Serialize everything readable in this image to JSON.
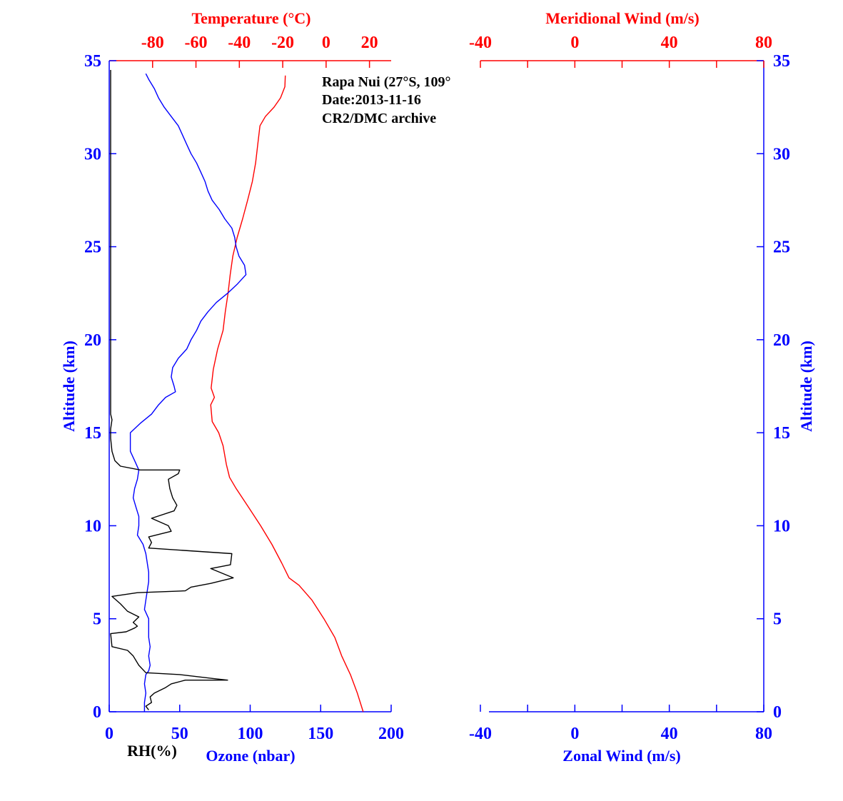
{
  "colors": {
    "ozone": "#0000ff",
    "temperature": "#ff0000",
    "rh": "#000000",
    "axes_blue": "#0000ff",
    "axes_red": "#ff0000"
  },
  "annotation": {
    "line1": "Rapa Nui (27°S, 109°",
    "line2": "Date:2013-11-16",
    "line3": "CR2/DMC archive"
  },
  "chart_data": [
    {
      "type": "line",
      "ylabel": "Altitude (km)",
      "ylim": [
        0,
        35
      ],
      "yticks": [
        "0",
        "5",
        "10",
        "15",
        "20",
        "25",
        "30",
        "35"
      ],
      "bottom_axis": {
        "label": "Ozone (nbar)",
        "lim": [
          0,
          200
        ],
        "ticks": [
          "0",
          "50",
          "100",
          "150",
          "200"
        ]
      },
      "rh_label": "RH(%)",
      "top_axis": {
        "label": "Temperature (°C)",
        "lim": [
          -100,
          30
        ],
        "ticks": [
          "-80",
          "-60",
          "-40",
          "-20",
          "0",
          "20"
        ]
      },
      "series": [
        {
          "name": "Temperature",
          "axis": "temperature",
          "points": [
            [
              17.1,
              0
            ],
            [
              14.4,
              1
            ],
            [
              11.2,
              2
            ],
            [
              10.0,
              2.3
            ],
            [
              7.2,
              3
            ],
            [
              4.0,
              4
            ],
            [
              -1.0,
              5
            ],
            [
              -6.5,
              6
            ],
            [
              -12.5,
              6.8
            ],
            [
              -17.1,
              7.2
            ],
            [
              -20.5,
              8
            ],
            [
              -25.0,
              9
            ],
            [
              -30.2,
              10
            ],
            [
              -35.8,
              11
            ],
            [
              -41.5,
              12
            ],
            [
              -44.5,
              12.6
            ],
            [
              -46.0,
              13.3
            ],
            [
              -47.5,
              14.3
            ],
            [
              -49.5,
              15.0
            ],
            [
              -52.5,
              15.6
            ],
            [
              -53.2,
              16.5
            ],
            [
              -51.5,
              16.9
            ],
            [
              -53.0,
              17.4
            ],
            [
              -52.0,
              18.4
            ],
            [
              -50.0,
              19.5
            ],
            [
              -47.5,
              20.5
            ],
            [
              -46.5,
              21.5
            ],
            [
              -45.2,
              22.5
            ],
            [
              -44.2,
              23.5
            ],
            [
              -43.0,
              24.5
            ],
            [
              -41.0,
              25.5
            ],
            [
              -38.5,
              26.5
            ],
            [
              -36.2,
              27.5
            ],
            [
              -34.0,
              28.5
            ],
            [
              -32.5,
              29.5
            ],
            [
              -31.5,
              30.5
            ],
            [
              -30.5,
              31.5
            ],
            [
              -28.0,
              32.0
            ],
            [
              -24.0,
              32.5
            ],
            [
              -21.0,
              33.0
            ],
            [
              -19.0,
              33.6
            ],
            [
              -18.8,
              34.2
            ]
          ]
        },
        {
          "name": "Ozone",
          "axis": "ozone",
          "points": [
            [
              25,
              0
            ],
            [
              25,
              0.5
            ],
            [
              26,
              1
            ],
            [
              25,
              1.5
            ],
            [
              26,
              2
            ],
            [
              28,
              2.2
            ],
            [
              29,
              2.5
            ],
            [
              28,
              3
            ],
            [
              29,
              3.5
            ],
            [
              28,
              4
            ],
            [
              28,
              4.5
            ],
            [
              28,
              5
            ],
            [
              25,
              5.5
            ],
            [
              26,
              6
            ],
            [
              27,
              6.5
            ],
            [
              28,
              7
            ],
            [
              28,
              7.5
            ],
            [
              27,
              8
            ],
            [
              26,
              8.5
            ],
            [
              24,
              9
            ],
            [
              20,
              9.5
            ],
            [
              21,
              10
            ],
            [
              21,
              10.5
            ],
            [
              19,
              11
            ],
            [
              17,
              11.5
            ],
            [
              18,
              12
            ],
            [
              20,
              12.5
            ],
            [
              21,
              13
            ],
            [
              18,
              13.5
            ],
            [
              15,
              14
            ],
            [
              15,
              14.5
            ],
            [
              15,
              15
            ],
            [
              22,
              15.5
            ],
            [
              30,
              16.0
            ],
            [
              35,
              16.5
            ],
            [
              40,
              16.9
            ],
            [
              47,
              17.2
            ],
            [
              46,
              17.5
            ],
            [
              44,
              18.0
            ],
            [
              45,
              18.5
            ],
            [
              49,
              19.0
            ],
            [
              55,
              19.5
            ],
            [
              58,
              20
            ],
            [
              62,
              20.5
            ],
            [
              65,
              21
            ],
            [
              70,
              21.5
            ],
            [
              76,
              22.0
            ],
            [
              84,
              22.5
            ],
            [
              91,
              23.0
            ],
            [
              97,
              23.5
            ],
            [
              96,
              24.0
            ],
            [
              92,
              24.5
            ],
            [
              90,
              25.0
            ],
            [
              89,
              25.5
            ],
            [
              87,
              26.0
            ],
            [
              82,
              26.5
            ],
            [
              78,
              27.0
            ],
            [
              73,
              27.5
            ],
            [
              70,
              28.0
            ],
            [
              68,
              28.5
            ],
            [
              65,
              29.0
            ],
            [
              62,
              29.5
            ],
            [
              58,
              30.0
            ],
            [
              55,
              30.5
            ],
            [
              52,
              31.0
            ],
            [
              49,
              31.5
            ],
            [
              44,
              32.0
            ],
            [
              39,
              32.5
            ],
            [
              35,
              33.0
            ],
            [
              32,
              33.5
            ],
            [
              28,
              34.0
            ],
            [
              26,
              34.3
            ]
          ]
        },
        {
          "name": "RH",
          "axis": "ozone",
          "points": [
            [
              28,
              0.1
            ],
            [
              26,
              0.3
            ],
            [
              30,
              0.5
            ],
            [
              29,
              0.8
            ],
            [
              32,
              1.0
            ],
            [
              40,
              1.3
            ],
            [
              44,
              1.5
            ],
            [
              54,
              1.7
            ],
            [
              84,
              1.7
            ],
            [
              72,
              1.8
            ],
            [
              50,
              2.0
            ],
            [
              26,
              2.1
            ],
            [
              21,
              2.5
            ],
            [
              17,
              3.0
            ],
            [
              13,
              3.3
            ],
            [
              2,
              3.5
            ],
            [
              1,
              4.2
            ],
            [
              12,
              4.3
            ],
            [
              18,
              4.5
            ],
            [
              20,
              4.6
            ],
            [
              17,
              4.8
            ],
            [
              21,
              5.1
            ],
            [
              13,
              5.4
            ],
            [
              8,
              5.8
            ],
            [
              2,
              6.2
            ],
            [
              20,
              6.4
            ],
            [
              54,
              6.5
            ],
            [
              58,
              6.7
            ],
            [
              72,
              6.9
            ],
            [
              88,
              7.2
            ],
            [
              72,
              7.7
            ],
            [
              86,
              7.9
            ],
            [
              87,
              8.5
            ],
            [
              28,
              8.8
            ],
            [
              30,
              9.1
            ],
            [
              28,
              9.4
            ],
            [
              44,
              9.7
            ],
            [
              42,
              10.0
            ],
            [
              30,
              10.4
            ],
            [
              46,
              10.8
            ],
            [
              48,
              11.1
            ],
            [
              45,
              11.5
            ],
            [
              43,
              12.0
            ],
            [
              42,
              12.5
            ],
            [
              49,
              12.8
            ],
            [
              50,
              13.0
            ],
            [
              40,
              13.0
            ],
            [
              22,
              13.0
            ],
            [
              8,
              13.2
            ],
            [
              4,
              13.5
            ],
            [
              2,
              14.0
            ],
            [
              1,
              14.7
            ],
            [
              1,
              15.2
            ],
            [
              2,
              15.7
            ],
            [
              1,
              16.0
            ],
            [
              1,
              34.5
            ]
          ]
        }
      ]
    },
    {
      "type": "line",
      "ylabel": "Altitude (km)",
      "ylim": [
        0,
        35
      ],
      "yticks": [
        "0",
        "5",
        "10",
        "15",
        "20",
        "25",
        "30",
        "35"
      ],
      "bottom_axis": {
        "label": "Zonal Wind (m/s)",
        "lim": [
          -40,
          80
        ],
        "ticks": [
          "-40",
          "0",
          "40",
          "80"
        ]
      },
      "top_axis": {
        "label": "Meridional Wind (m/s)",
        "lim": [
          -40,
          80
        ],
        "ticks": [
          "-40",
          "0",
          "40",
          "80"
        ]
      },
      "series": []
    }
  ]
}
